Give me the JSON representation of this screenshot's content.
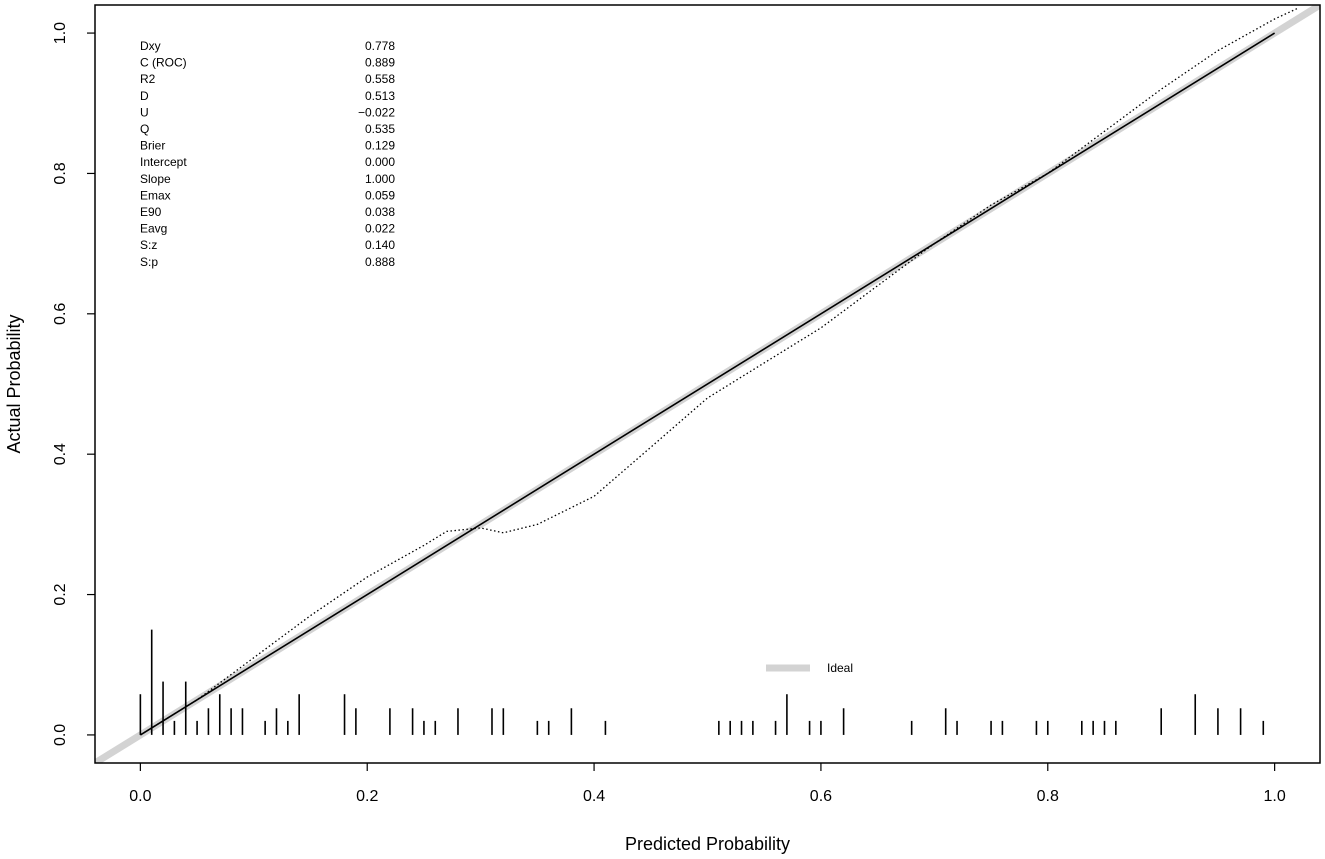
{
  "chart_data": {
    "type": "line",
    "title": "",
    "xlabel": "Predicted Probability",
    "ylabel": "Actual Probability",
    "xlim": [
      -0.04,
      1.04
    ],
    "ylim": [
      -0.04,
      1.04
    ],
    "x_ticks": [
      0.0,
      0.2,
      0.4,
      0.6,
      0.8,
      1.0
    ],
    "x_tick_labels": [
      "0.0",
      "0.2",
      "0.4",
      "0.6",
      "0.8",
      "1.0"
    ],
    "y_ticks": [
      0.0,
      0.2,
      0.4,
      0.6,
      0.8,
      1.0
    ],
    "y_tick_labels": [
      "0.0",
      "0.2",
      "0.4",
      "0.6",
      "0.8",
      "1.0"
    ],
    "grid": false,
    "legend": {
      "position": "bottom-center",
      "entries": [
        "Ideal"
      ]
    },
    "series": [
      {
        "name": "Ideal",
        "style": "thick light gray",
        "color": "#d3d3d3",
        "x": [
          -0.04,
          1.04
        ],
        "y": [
          -0.04,
          1.04
        ]
      },
      {
        "style": "solid black",
        "color": "#000000",
        "x": [
          0.0,
          1.0
        ],
        "y": [
          0.0,
          1.0
        ]
      },
      {
        "style": "dotted black",
        "color": "#000000",
        "x": [
          0.0,
          0.05,
          0.1,
          0.15,
          0.2,
          0.25,
          0.27,
          0.3,
          0.32,
          0.35,
          0.4,
          0.45,
          0.5,
          0.55,
          0.6,
          0.65,
          0.7,
          0.75,
          0.8,
          0.85,
          0.9,
          0.95,
          1.0,
          1.02
        ],
        "y": [
          0.0,
          0.05,
          0.11,
          0.17,
          0.225,
          0.27,
          0.29,
          0.295,
          0.288,
          0.3,
          0.34,
          0.41,
          0.48,
          0.53,
          0.58,
          0.64,
          0.7,
          0.755,
          0.8,
          0.86,
          0.92,
          0.975,
          1.02,
          1.035
        ]
      }
    ],
    "rug": {
      "x": [
        0.0,
        0.01,
        0.02,
        0.03,
        0.04,
        0.05,
        0.06,
        0.07,
        0.08,
        0.09,
        0.11,
        0.12,
        0.13,
        0.14,
        0.18,
        0.19,
        0.22,
        0.24,
        0.25,
        0.26,
        0.28,
        0.31,
        0.32,
        0.35,
        0.36,
        0.38,
        0.41,
        0.51,
        0.52,
        0.53,
        0.54,
        0.56,
        0.57,
        0.59,
        0.6,
        0.62,
        0.68,
        0.71,
        0.72,
        0.75,
        0.76,
        0.79,
        0.8,
        0.83,
        0.84,
        0.85,
        0.86,
        0.9,
        0.93,
        0.95,
        0.97,
        0.99
      ],
      "height": [
        0.058,
        0.15,
        0.076,
        0.02,
        0.076,
        0.02,
        0.038,
        0.058,
        0.038,
        0.038,
        0.02,
        0.038,
        0.02,
        0.058,
        0.058,
        0.038,
        0.038,
        0.038,
        0.02,
        0.02,
        0.038,
        0.038,
        0.038,
        0.02,
        0.02,
        0.038,
        0.02,
        0.02,
        0.02,
        0.02,
        0.02,
        0.02,
        0.058,
        0.02,
        0.02,
        0.038,
        0.02,
        0.038,
        0.02,
        0.02,
        0.02,
        0.02,
        0.02,
        0.02,
        0.02,
        0.02,
        0.02,
        0.038,
        0.058,
        0.038,
        0.038,
        0.02
      ]
    },
    "statistics": [
      {
        "label": "Dxy",
        "value": "0.778"
      },
      {
        "label": "C (ROC)",
        "value": "0.889"
      },
      {
        "label": "R2",
        "value": "0.558"
      },
      {
        "label": "D",
        "value": "0.513"
      },
      {
        "label": "U",
        "value": "−0.022"
      },
      {
        "label": "Q",
        "value": "0.535"
      },
      {
        "label": "Brier",
        "value": "0.129"
      },
      {
        "label": "Intercept",
        "value": "0.000"
      },
      {
        "label": "Slope",
        "value": "1.000"
      },
      {
        "label": "Emax",
        "value": "0.059"
      },
      {
        "label": "E90",
        "value": "0.038"
      },
      {
        "label": "Eavg",
        "value": "0.022"
      },
      {
        "label": "S:z",
        "value": "0.140"
      },
      {
        "label": "S:p",
        "value": "0.888"
      }
    ]
  }
}
